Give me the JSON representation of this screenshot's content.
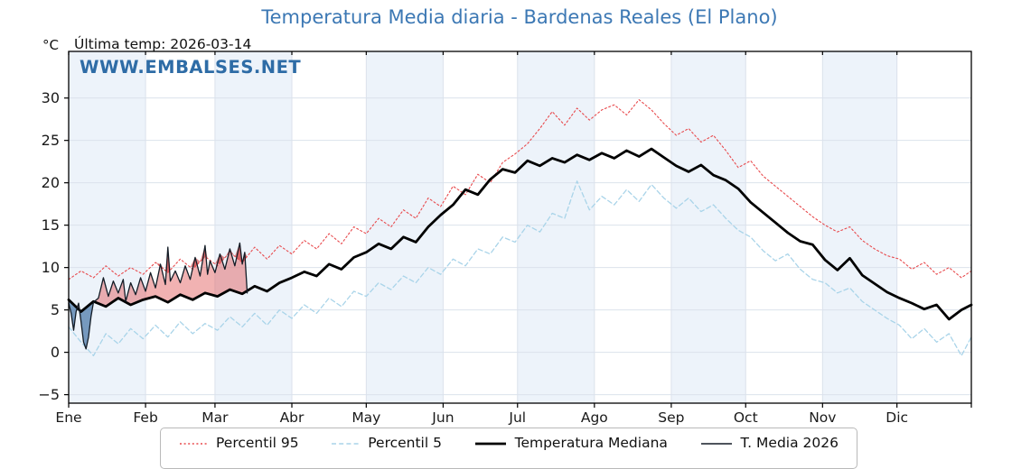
{
  "title": "Temperatura Media diaria - Bardenas Reales (El Plano)",
  "y_axis_unit": "°C",
  "last_temp_label": "Última temp: 2026-03-14",
  "watermark": "WWW.EMBALSES.NET",
  "colors": {
    "title": "#3c78b4",
    "watermark": "#2e6ca6",
    "band": "#edf3fa",
    "grid": "#dbe2ec",
    "frame": "#000000",
    "tick_label": "#1a1a1a",
    "fill_above_median": "rgba(225,85,85,0.45)",
    "fill_above_p95": "rgba(198,40,42,0.55)",
    "fill_below_median": "rgba(54,104,158,0.65)"
  },
  "chart_data": {
    "type": "line",
    "title": "Temperatura Media diaria - Bardenas Reales (El Plano)",
    "xlabel": "",
    "ylabel": "°C",
    "ylim": [
      -6,
      35.5
    ],
    "yticks": [
      -5,
      0,
      5,
      10,
      15,
      20,
      25,
      30
    ],
    "grid": true,
    "legend_position": "bottom",
    "months": [
      {
        "label": "Ene",
        "start": 1
      },
      {
        "label": "Feb",
        "start": 32
      },
      {
        "label": "Mar",
        "start": 60
      },
      {
        "label": "Abr",
        "start": 91
      },
      {
        "label": "May",
        "start": 121
      },
      {
        "label": "Jun",
        "start": 152
      },
      {
        "label": "Jul",
        "start": 182
      },
      {
        "label": "Ago",
        "start": 213
      },
      {
        "label": "Sep",
        "start": 244
      },
      {
        "label": "Oct",
        "start": 274
      },
      {
        "label": "Nov",
        "start": 305
      },
      {
        "label": "Dic",
        "start": 335
      }
    ],
    "days_in_year": 365,
    "clim_days": [
      1,
      6,
      11,
      16,
      21,
      26,
      31,
      36,
      41,
      46,
      51,
      56,
      61,
      66,
      71,
      76,
      81,
      86,
      91,
      96,
      101,
      106,
      111,
      116,
      121,
      126,
      131,
      136,
      141,
      146,
      151,
      156,
      161,
      166,
      171,
      176,
      181,
      186,
      191,
      196,
      201,
      206,
      211,
      216,
      221,
      226,
      231,
      236,
      241,
      246,
      251,
      256,
      261,
      266,
      271,
      276,
      281,
      286,
      291,
      296,
      301,
      306,
      311,
      316,
      321,
      326,
      331,
      336,
      341,
      346,
      351,
      356,
      361,
      365
    ],
    "series": [
      {
        "name": "Percentil 95",
        "color": "#e84a4d",
        "width": 1.1,
        "dash": "2 2.6",
        "values": [
          8.6,
          9.6,
          8.8,
          10.2,
          9.0,
          10.0,
          9.2,
          10.6,
          9.4,
          11.0,
          9.8,
          11.3,
          10.2,
          11.8,
          10.6,
          12.4,
          11.0,
          12.6,
          11.6,
          13.2,
          12.2,
          14.0,
          12.8,
          14.8,
          14.0,
          15.8,
          14.8,
          16.8,
          15.8,
          18.2,
          17.2,
          19.6,
          18.6,
          21.0,
          20.0,
          22.4,
          23.4,
          24.6,
          26.4,
          28.4,
          26.8,
          28.8,
          27.4,
          28.6,
          29.2,
          28.0,
          29.8,
          28.6,
          27.0,
          25.6,
          26.4,
          24.8,
          25.6,
          23.8,
          21.8,
          22.6,
          20.8,
          19.6,
          18.4,
          17.2,
          16.0,
          15.0,
          14.2,
          14.8,
          13.2,
          12.2,
          11.4,
          11.0,
          9.8,
          10.6,
          9.2,
          10.0,
          8.8,
          9.6
        ]
      },
      {
        "name": "Percentil 5",
        "color": "#a9d4e9",
        "width": 1.3,
        "dash": "5 3.2",
        "values": [
          3.0,
          1.2,
          -0.4,
          2.2,
          1.0,
          2.8,
          1.6,
          3.2,
          1.8,
          3.6,
          2.2,
          3.4,
          2.6,
          4.2,
          3.0,
          4.6,
          3.2,
          5.0,
          4.0,
          5.6,
          4.6,
          6.4,
          5.4,
          7.2,
          6.6,
          8.2,
          7.4,
          9.0,
          8.2,
          10.0,
          9.2,
          11.0,
          10.2,
          12.2,
          11.6,
          13.6,
          13.0,
          15.0,
          14.2,
          16.4,
          15.8,
          20.2,
          16.8,
          18.4,
          17.4,
          19.2,
          17.8,
          19.8,
          18.2,
          17.0,
          18.2,
          16.6,
          17.4,
          15.8,
          14.4,
          13.6,
          12.0,
          10.8,
          11.6,
          9.8,
          8.6,
          8.2,
          7.0,
          7.6,
          6.0,
          5.0,
          4.0,
          3.2,
          1.6,
          2.8,
          1.2,
          2.2,
          -0.4,
          1.8
        ]
      },
      {
        "name": "Temperatura Mediana",
        "color": "#000000",
        "width": 2.8,
        "dash": "",
        "values": [
          6.2,
          4.8,
          6.0,
          5.4,
          6.4,
          5.6,
          6.2,
          6.6,
          5.9,
          6.8,
          6.2,
          7.0,
          6.6,
          7.4,
          6.9,
          7.8,
          7.2,
          8.2,
          8.8,
          9.5,
          9.0,
          10.4,
          9.8,
          11.2,
          11.8,
          12.8,
          12.2,
          13.6,
          13.0,
          14.8,
          16.2,
          17.4,
          19.2,
          18.6,
          20.4,
          21.6,
          21.2,
          22.6,
          22.0,
          22.9,
          22.4,
          23.3,
          22.7,
          23.5,
          22.9,
          23.8,
          23.1,
          24.0,
          23.0,
          22.0,
          21.3,
          22.1,
          20.9,
          20.3,
          19.3,
          17.7,
          16.5,
          15.3,
          14.1,
          13.1,
          12.7,
          10.9,
          9.7,
          11.1,
          9.1,
          8.1,
          7.1,
          6.4,
          5.8,
          5.1,
          5.6,
          3.9,
          5.0,
          5.6
        ]
      },
      {
        "name": "T. Media 2026",
        "color": "#131c26",
        "width": 1.3,
        "dash": "",
        "days": [
          1,
          2,
          3,
          4,
          5,
          6,
          7,
          8,
          9,
          10,
          11,
          13,
          15,
          17,
          19,
          21,
          23,
          24,
          26,
          28,
          30,
          32,
          34,
          36,
          38,
          40,
          41,
          42,
          44,
          46,
          48,
          50,
          52,
          54,
          56,
          57,
          58,
          60,
          62,
          64,
          66,
          68,
          70,
          71,
          72,
          73
        ],
        "values": [
          5.8,
          4.6,
          2.6,
          4.8,
          5.8,
          3.6,
          1.2,
          0.4,
          1.8,
          4.2,
          5.9,
          6.4,
          8.8,
          6.6,
          8.4,
          7.0,
          8.6,
          6.0,
          8.2,
          6.8,
          8.8,
          7.2,
          9.4,
          7.6,
          10.4,
          8.0,
          12.4,
          8.4,
          9.6,
          8.2,
          10.2,
          8.6,
          11.2,
          9.0,
          12.6,
          9.2,
          10.8,
          9.4,
          11.6,
          9.8,
          12.2,
          10.2,
          12.9,
          10.4,
          11.8,
          7.0
        ]
      }
    ]
  }
}
